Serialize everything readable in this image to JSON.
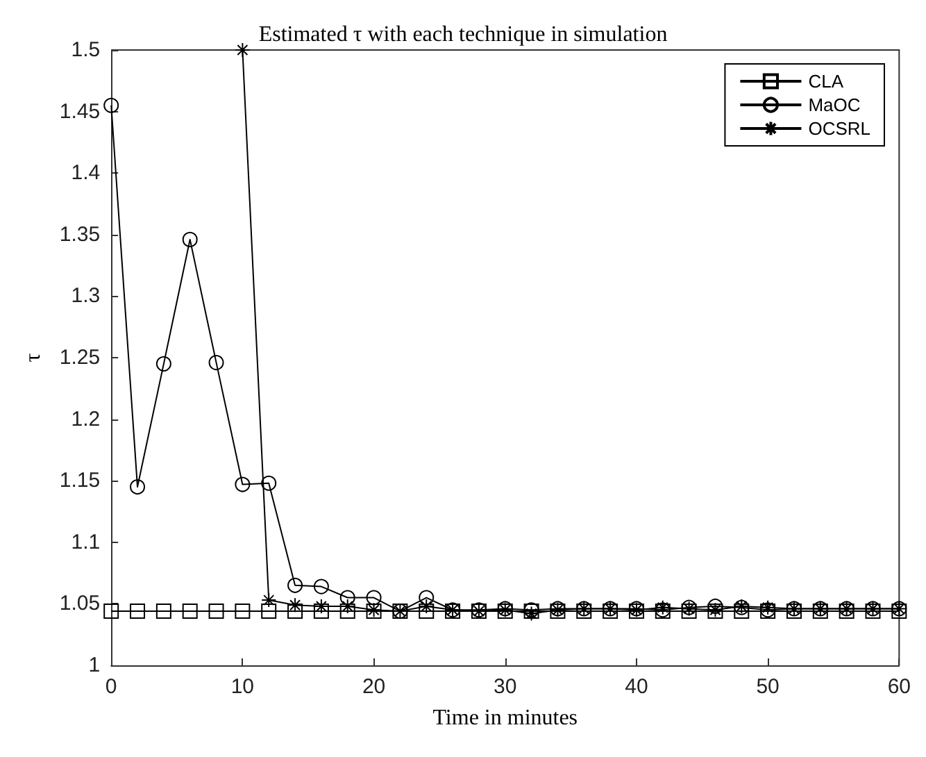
{
  "chart_data": {
    "type": "line",
    "title": "Estimated τ with each technique in simulation",
    "xlabel": "Time in minutes",
    "ylabel": "τ",
    "x": [
      0,
      2,
      4,
      6,
      8,
      10,
      12,
      14,
      16,
      18,
      20,
      22,
      24,
      26,
      28,
      30,
      32,
      34,
      36,
      38,
      40,
      42,
      44,
      46,
      48,
      50,
      52,
      54,
      56,
      58,
      60
    ],
    "series": [
      {
        "name": "CLA",
        "color": "#000000",
        "marker": "square",
        "values": [
          1.044,
          1.044,
          1.044,
          1.044,
          1.044,
          1.044,
          1.044,
          1.044,
          1.044,
          1.044,
          1.044,
          1.044,
          1.044,
          1.044,
          1.044,
          1.044,
          1.044,
          1.044,
          1.044,
          1.044,
          1.044,
          1.044,
          1.044,
          1.044,
          1.044,
          1.044,
          1.044,
          1.044,
          1.044,
          1.044,
          1.044
        ]
      },
      {
        "name": "MaOC",
        "color": "#000000",
        "marker": "circle",
        "values": [
          1.455,
          1.145,
          1.245,
          1.346,
          1.246,
          1.147,
          1.148,
          1.065,
          1.064,
          1.055,
          1.055,
          1.044,
          1.055,
          1.045,
          1.045,
          1.046,
          1.045,
          1.046,
          1.046,
          1.046,
          1.046,
          1.045,
          1.047,
          1.048,
          1.047,
          1.045,
          1.046,
          1.046,
          1.046,
          1.046,
          1.046
        ]
      },
      {
        "name": "OCSRL",
        "color": "#000000",
        "marker": "cross",
        "values": [
          null,
          null,
          null,
          null,
          null,
          1.5,
          1.053,
          1.049,
          1.048,
          1.048,
          1.045,
          1.044,
          1.048,
          1.045,
          1.044,
          1.045,
          1.042,
          1.045,
          1.046,
          1.046,
          1.045,
          1.047,
          1.046,
          1.045,
          1.048,
          1.047,
          1.046,
          1.046,
          1.046,
          1.046,
          1.046
        ]
      }
    ],
    "xlim": [
      0,
      60
    ],
    "xticks": [
      0,
      10,
      20,
      30,
      40,
      50,
      60
    ],
    "ylim": [
      1,
      1.5
    ],
    "yticks": [
      1,
      1.05,
      1.1,
      1.15,
      1.2,
      1.25,
      1.3,
      1.35,
      1.4,
      1.45,
      1.5
    ],
    "grid": false,
    "legend": "top right",
    "line_style": "solid"
  }
}
